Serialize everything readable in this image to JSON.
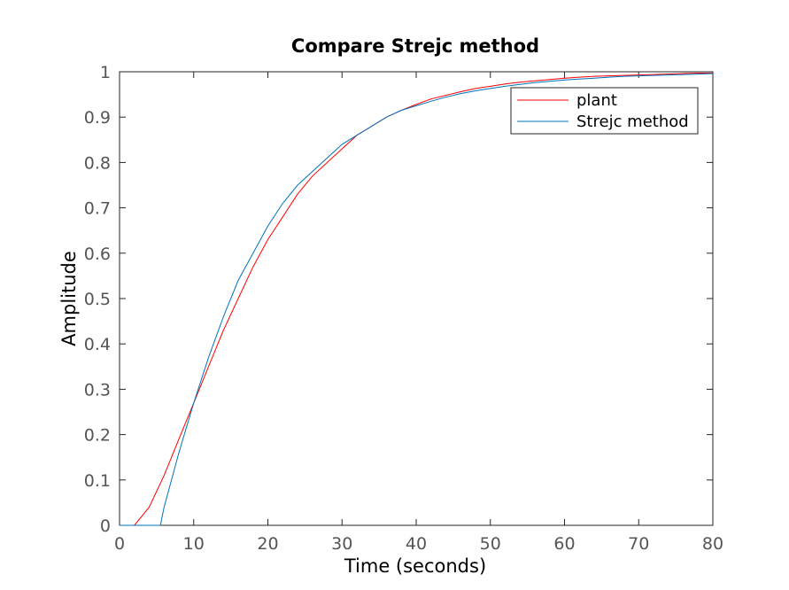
{
  "chart_data": {
    "type": "line",
    "title": "Compare Strejc method",
    "xlabel": "Time (seconds)",
    "ylabel": "Amplitude",
    "xlim": [
      0,
      80
    ],
    "ylim": [
      0,
      1
    ],
    "xticks": [
      0,
      10,
      20,
      30,
      40,
      50,
      60,
      70,
      80
    ],
    "yticks": [
      0,
      0.1,
      0.2,
      0.3,
      0.4,
      0.5,
      0.6,
      0.7,
      0.8,
      0.9,
      1
    ],
    "xtick_labels": [
      "0",
      "10",
      "20",
      "30",
      "40",
      "50",
      "60",
      "70",
      "80"
    ],
    "ytick_labels": [
      "0",
      "0.1",
      "0.2",
      "0.3",
      "0.4",
      "0.5",
      "0.6",
      "0.7",
      "0.8",
      "0.9",
      "1"
    ],
    "grid": false,
    "legend_position": "top-right",
    "series": [
      {
        "name": "plant",
        "color": "#ff0000",
        "x": [
          0,
          2,
          4,
          6,
          8,
          10,
          12,
          14,
          16,
          18,
          20,
          22,
          24,
          26,
          28,
          30,
          32,
          34,
          36,
          38,
          40,
          42,
          44,
          46,
          48,
          50,
          52,
          54,
          56,
          58,
          60,
          62,
          64,
          66,
          68,
          70,
          72,
          74,
          76,
          78,
          80
        ],
        "y": [
          0,
          0,
          0.04,
          0.11,
          0.19,
          0.27,
          0.35,
          0.43,
          0.5,
          0.57,
          0.63,
          0.68,
          0.73,
          0.77,
          0.8,
          0.83,
          0.86,
          0.88,
          0.9,
          0.915,
          0.928,
          0.94,
          0.948,
          0.956,
          0.963,
          0.968,
          0.973,
          0.977,
          0.98,
          0.983,
          0.986,
          0.988,
          0.99,
          0.991,
          0.992,
          0.993,
          0.994,
          0.995,
          0.996,
          0.997,
          0.997
        ]
      },
      {
        "name": "Strejc method",
        "color": "#0072bd",
        "x": [
          0,
          2,
          4,
          5.5,
          6,
          8,
          10,
          12,
          14,
          16,
          18,
          20,
          22,
          24,
          26,
          28,
          30,
          32,
          34,
          36,
          38,
          40,
          42,
          44,
          46,
          48,
          50,
          52,
          54,
          56,
          58,
          60,
          62,
          64,
          66,
          68,
          70,
          72,
          74,
          76,
          78,
          80
        ],
        "y": [
          0,
          0,
          0,
          0,
          0.04,
          0.16,
          0.27,
          0.37,
          0.46,
          0.54,
          0.6,
          0.66,
          0.71,
          0.75,
          0.78,
          0.81,
          0.84,
          0.86,
          0.88,
          0.9,
          0.915,
          0.925,
          0.935,
          0.944,
          0.952,
          0.958,
          0.963,
          0.968,
          0.972,
          0.976,
          0.979,
          0.982,
          0.984,
          0.986,
          0.988,
          0.99,
          0.991,
          0.992,
          0.993,
          0.994,
          0.995,
          0.996
        ]
      }
    ]
  }
}
